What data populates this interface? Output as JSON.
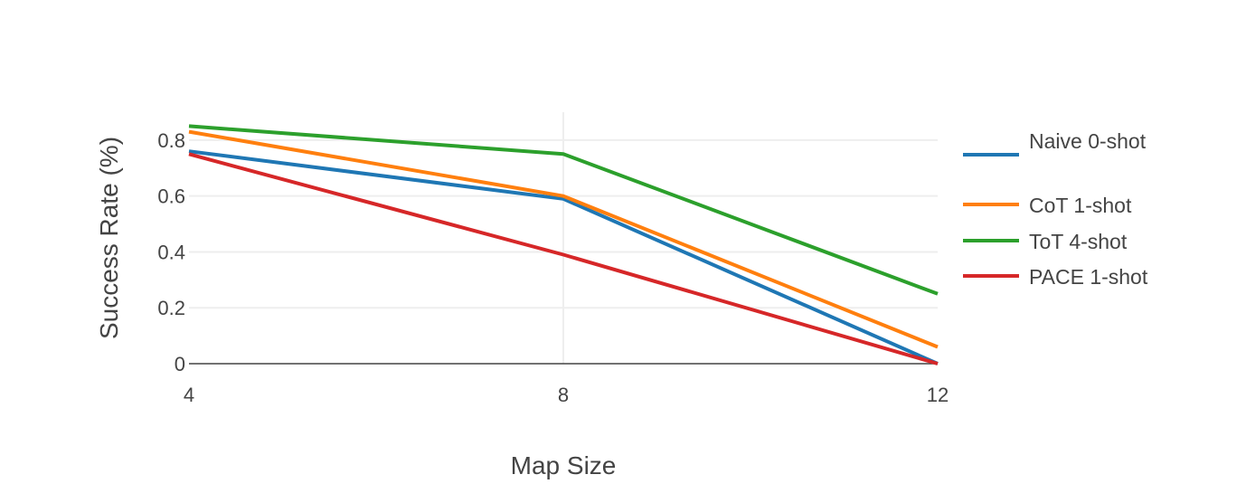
{
  "chart_data": {
    "type": "line",
    "xlabel": "Map Size",
    "ylabel": "Success Rate (%)",
    "x": [
      4,
      8,
      12
    ],
    "xlim": [
      4,
      12
    ],
    "ylim": [
      0,
      0.9
    ],
    "x_ticks": [
      "4",
      "8",
      "12"
    ],
    "y_ticks": [
      "0",
      "0.2",
      "0.4",
      "0.6",
      "0.8"
    ],
    "grid": true,
    "legend_position": "right",
    "series": [
      {
        "name": "Naive 0-shot",
        "color": "#1f77b4",
        "values": [
          0.76,
          0.59,
          0.0
        ]
      },
      {
        "name": "CoT 1-shot",
        "color": "#ff7f0e",
        "values": [
          0.83,
          0.6,
          0.06
        ]
      },
      {
        "name": "ToT 4-shot",
        "color": "#2ca02c",
        "values": [
          0.85,
          0.75,
          0.25
        ]
      },
      {
        "name": "PACE 1-shot",
        "color": "#d62728",
        "values": [
          0.75,
          0.39,
          0.0
        ]
      }
    ]
  }
}
